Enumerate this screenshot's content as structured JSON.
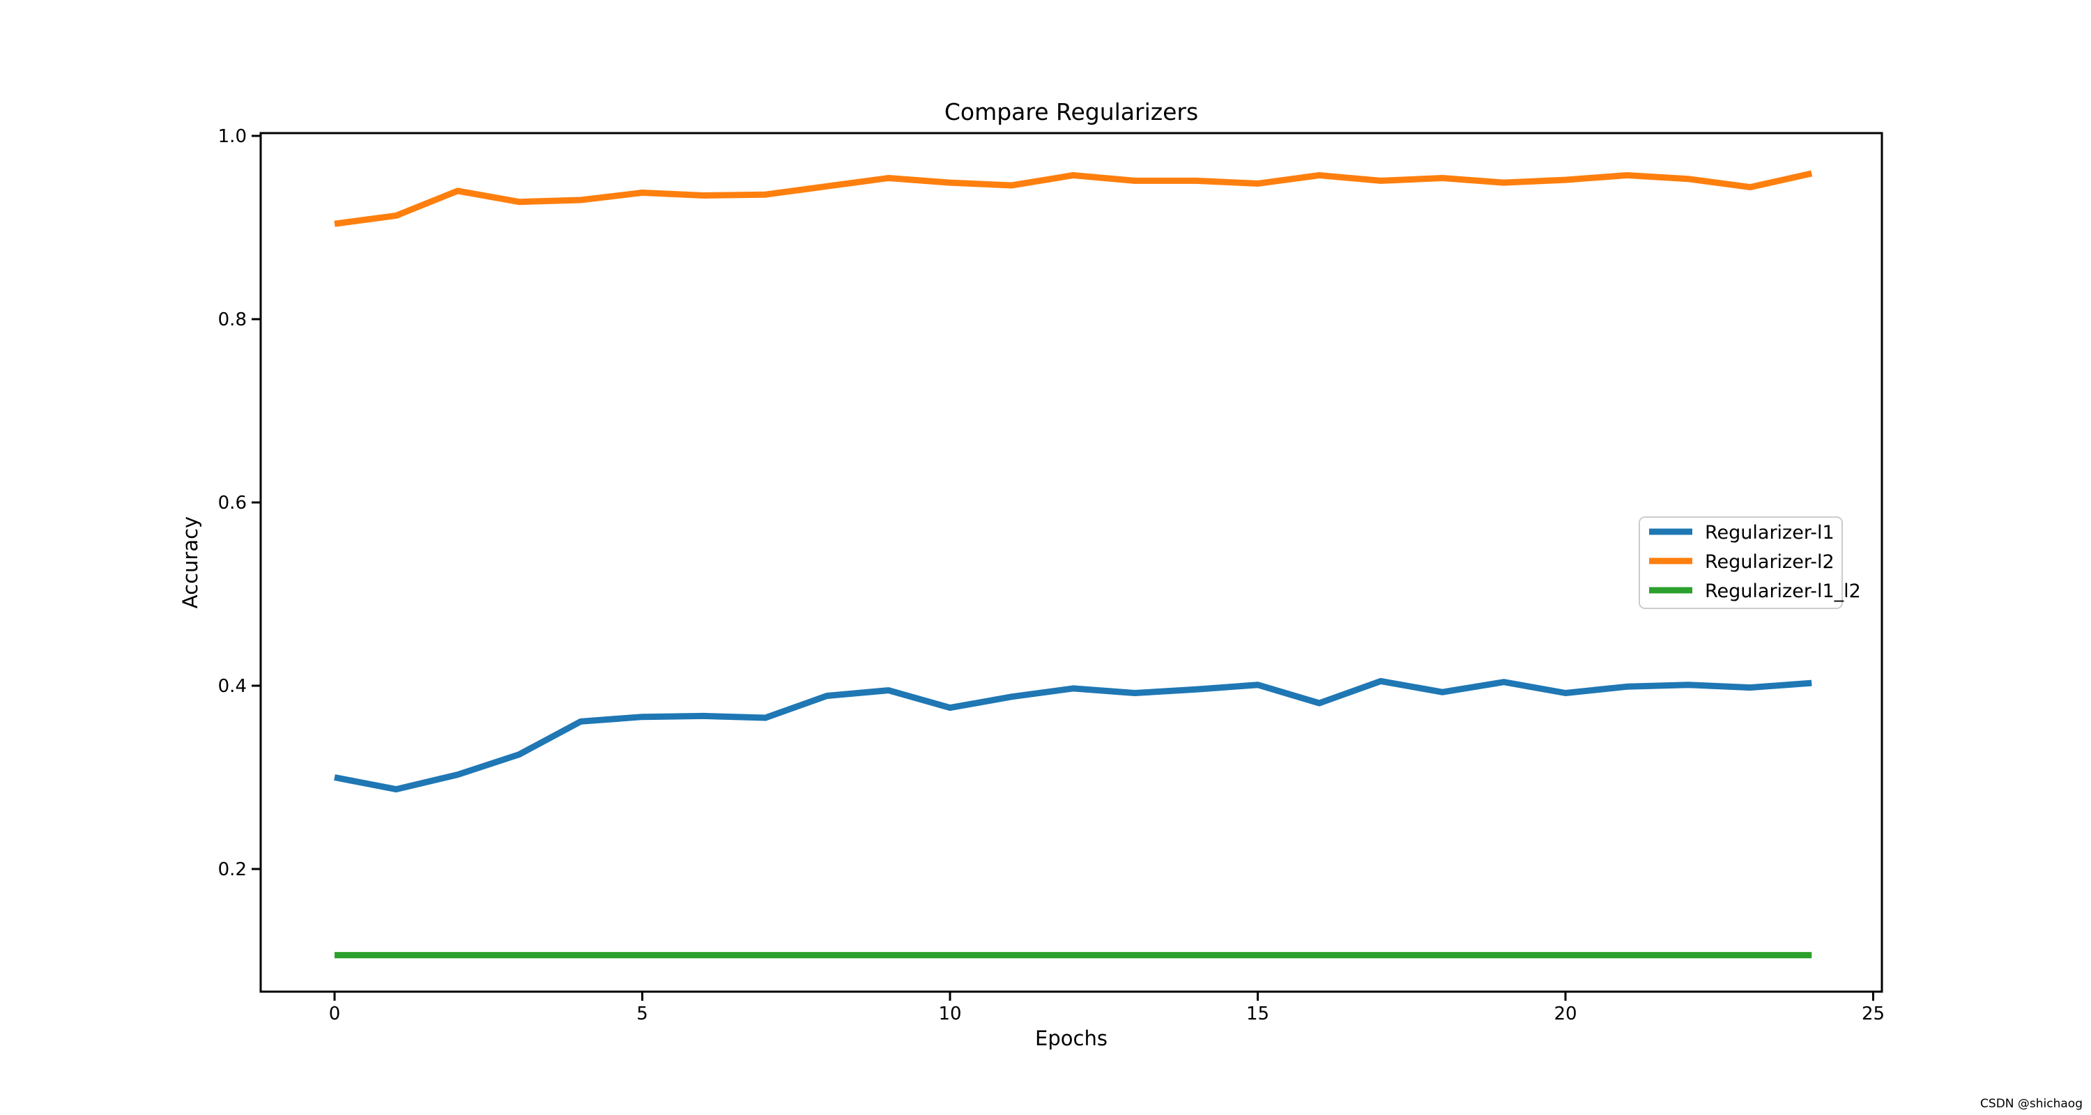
{
  "chart_data": {
    "type": "line",
    "title": "Compare Regularizers",
    "xlabel": "Epochs",
    "ylabel": "Accuracy",
    "x": [
      0,
      1,
      2,
      3,
      4,
      5,
      6,
      7,
      8,
      9,
      10,
      11,
      12,
      13,
      14,
      15,
      16,
      17,
      18,
      19,
      20,
      21,
      22,
      23,
      24
    ],
    "xticks": [
      0,
      5,
      10,
      15,
      20,
      25
    ],
    "yticks": [
      0.2,
      0.4,
      0.6,
      0.8,
      1.0
    ],
    "xlim": [
      -1.2,
      25.1
    ],
    "ylim": [
      0.06,
      1.0
    ],
    "grid": false,
    "legend": {
      "position": "center-right",
      "items": [
        "Regularizer-l1",
        "Regularizer-l2",
        "Regularizer-l1_l2"
      ]
    },
    "series": [
      {
        "name": "Regularizer-l1",
        "color": "#1f77b4",
        "values": [
          0.3,
          0.287,
          0.303,
          0.325,
          0.361,
          0.366,
          0.367,
          0.365,
          0.389,
          0.395,
          0.376,
          0.388,
          0.397,
          0.392,
          0.396,
          0.401,
          0.381,
          0.405,
          0.393,
          0.404,
          0.392,
          0.399,
          0.401,
          0.398,
          0.403
        ]
      },
      {
        "name": "Regularizer-l2",
        "color": "#ff7f0e",
        "values": [
          0.904,
          0.913,
          0.94,
          0.928,
          0.93,
          0.938,
          0.935,
          0.936,
          0.945,
          0.954,
          0.949,
          0.946,
          0.957,
          0.951,
          0.951,
          0.948,
          0.957,
          0.951,
          0.954,
          0.949,
          0.952,
          0.957,
          0.953,
          0.944,
          0.959
        ]
      },
      {
        "name": "Regularizer-l1_l2",
        "color": "#2ca02c",
        "values": [
          0.106,
          0.106,
          0.106,
          0.106,
          0.106,
          0.106,
          0.106,
          0.106,
          0.106,
          0.106,
          0.106,
          0.106,
          0.106,
          0.106,
          0.106,
          0.106,
          0.106,
          0.106,
          0.106,
          0.106,
          0.106,
          0.106,
          0.106,
          0.106,
          0.106
        ]
      }
    ]
  },
  "watermark": {
    "text": "CSDN @shichaog",
    "color": "#9f9fa4"
  },
  "colors": {
    "background": "#ffffff",
    "spine": "#000000",
    "legend_border": "#cccccc",
    "legend_background": "#ffffff"
  }
}
